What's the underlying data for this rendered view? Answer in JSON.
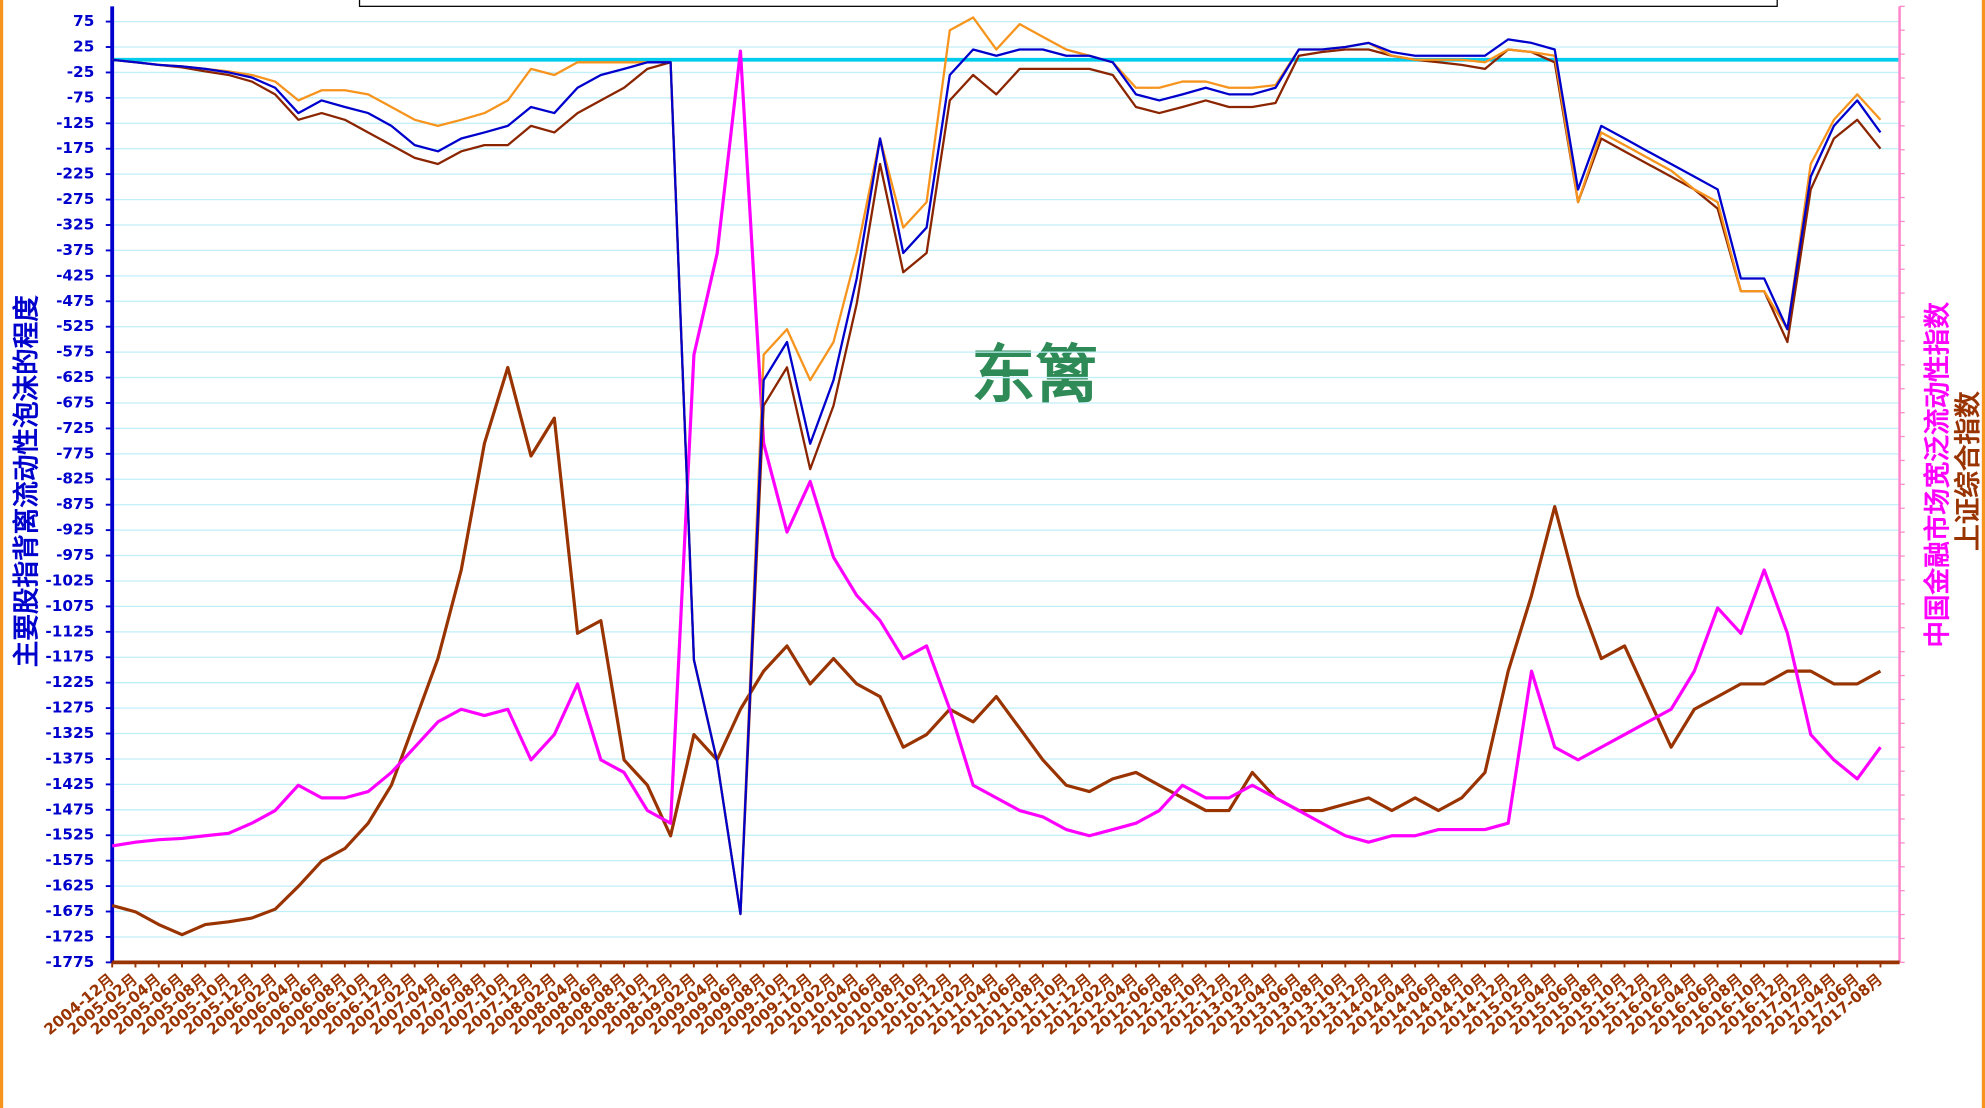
{
  "chart_data": {
    "type": "line",
    "y_label": "主要股指背离流动性泡沫的程度",
    "y2_labels": [
      "中国金融市场宽泛流动性指数",
      "上证综合指数"
    ],
    "watermark": "东篱",
    "categories": [
      "2004-12月",
      "2005-02月",
      "2005-04月",
      "2005-06月",
      "2005-08月",
      "2005-10月",
      "2005-12月",
      "2006-02月",
      "2006-04月",
      "2006-06月",
      "2006-08月",
      "2006-10月",
      "2006-12月",
      "2007-02月",
      "2007-04月",
      "2007-06月",
      "2007-08月",
      "2007-10月",
      "2007-12月",
      "2008-02月",
      "2008-04月",
      "2008-06月",
      "2008-08月",
      "2008-10月",
      "2008-12月",
      "2009-02月",
      "2009-04月",
      "2009-06月",
      "2009-08月",
      "2009-10月",
      "2009-12月",
      "2010-02月",
      "2010-04月",
      "2010-06月",
      "2010-08月",
      "2010-10月",
      "2010-12月",
      "2011-02月",
      "2011-04月",
      "2011-06月",
      "2011-08月",
      "2011-10月",
      "2011-12月",
      "2012-02月",
      "2012-04月",
      "2012-06月",
      "2012-08月",
      "2012-10月",
      "2012-12月",
      "2013-02月",
      "2013-04月",
      "2013-06月",
      "2013-08月",
      "2013-10月",
      "2013-12月",
      "2014-02月",
      "2014-04月",
      "2014-06月",
      "2014-08月",
      "2014-10月",
      "2014-12月",
      "2015-02月",
      "2015-04月",
      "2015-06月",
      "2015-08月",
      "2015-10月",
      "2015-12月",
      "2016-02月",
      "2016-04月",
      "2016-06月",
      "2016-08月",
      "2016-10月",
      "2016-12月",
      "2017-02月",
      "2017-04月",
      "2017-06月",
      "2017-08月"
    ],
    "ylim": [
      -1775,
      105
    ],
    "yticks": [
      75,
      25,
      -25,
      -75,
      -125,
      -175,
      -225,
      -275,
      -325,
      -375,
      -425,
      -475,
      -525,
      -575,
      -625,
      -675,
      -725,
      -775,
      -825,
      -875,
      -925,
      -975,
      -1025,
      -1075,
      -1125,
      -1175,
      -1225,
      -1275,
      -1325,
      -1375,
      -1425,
      -1475,
      -1525,
      -1575,
      -1625,
      -1675,
      -1725,
      -1775
    ],
    "y2lim": [
      784,
      8880
    ],
    "grid": true,
    "zero_line": {
      "value": 0,
      "color": "#00ccee"
    },
    "series": [
      {
        "color": "#0000cc",
        "axis": "y",
        "values": [
          0,
          -5,
          -10,
          -13,
          -18,
          -25,
          -35,
          -55,
          -105,
          -80,
          -93,
          -105,
          -130,
          -168,
          -180,
          -155,
          -143,
          -130,
          -93,
          -105,
          -55,
          -30,
          -18,
          -5,
          -5,
          -1180,
          -1380,
          -1680,
          -630,
          -555,
          -755,
          -630,
          -430,
          -155,
          -380,
          -330,
          -30,
          20,
          8,
          20,
          20,
          8,
          8,
          -5,
          -68,
          -80,
          -68,
          -55,
          -68,
          -68,
          -55,
          20,
          20,
          25,
          33,
          15,
          8,
          8,
          8,
          8,
          40,
          33,
          20,
          -255,
          -130,
          -155,
          -180,
          -205,
          -230,
          -255,
          -430,
          -430,
          -530,
          -230,
          -130,
          -80,
          -143
        ]
      },
      {
        "color": "#f7941d",
        "axis": "y",
        "values": [
          0,
          -5,
          -10,
          -13,
          -18,
          -23,
          -30,
          -43,
          -80,
          -60,
          -60,
          -68,
          -93,
          -118,
          -130,
          -118,
          -105,
          -80,
          -18,
          -30,
          -5,
          -5,
          -5,
          -5,
          -5,
          -1180,
          -1380,
          -1680,
          -580,
          -530,
          -630,
          -555,
          -380,
          -155,
          -330,
          -280,
          58,
          83,
          20,
          70,
          45,
          20,
          8,
          -5,
          -55,
          -55,
          -43,
          -43,
          -55,
          -55,
          -50,
          20,
          20,
          25,
          33,
          8,
          0,
          0,
          0,
          -5,
          20,
          15,
          8,
          -280,
          -143,
          -168,
          -193,
          -218,
          -255,
          -280,
          -455,
          -455,
          -530,
          -205,
          -118,
          -68,
          -118
        ]
      },
      {
        "color": "#8b2500",
        "axis": "y",
        "values": [
          0,
          -5,
          -10,
          -15,
          -23,
          -30,
          -43,
          -68,
          -118,
          -105,
          -118,
          -143,
          -168,
          -193,
          -205,
          -180,
          -168,
          -168,
          -130,
          -143,
          -105,
          -80,
          -55,
          -18,
          -5,
          -1180,
          -1380,
          -1680,
          -680,
          -605,
          -805,
          -680,
          -480,
          -205,
          -418,
          -380,
          -80,
          -30,
          -68,
          -18,
          -18,
          -18,
          -18,
          -30,
          -93,
          -105,
          -93,
          -80,
          -93,
          -93,
          -85,
          8,
          15,
          20,
          20,
          8,
          0,
          -5,
          -10,
          -18,
          20,
          15,
          -5,
          -280,
          -155,
          -180,
          -205,
          -230,
          -255,
          -293,
          -455,
          -455,
          -555,
          -255,
          -155,
          -118,
          -175
        ]
      },
      {
        "color": "#ff00ff",
        "axis": "y2",
        "values": [
          1770,
          1802,
          1823,
          1834,
          1856,
          1877,
          1963,
          2070,
          2284,
          2177,
          2177,
          2231,
          2392,
          2606,
          2820,
          2928,
          2874,
          2928,
          2499,
          2713,
          3142,
          2499,
          2392,
          2070,
          1963,
          5929,
          6787,
          8502,
          5179,
          4428,
          4857,
          4214,
          3892,
          3678,
          3356,
          3464,
          2928,
          2284,
          2177,
          2070,
          2016,
          1909,
          1856,
          1909,
          1963,
          2070,
          2284,
          2177,
          2177,
          2284,
          2177,
          2070,
          1963,
          1856,
          1802,
          1856,
          1856,
          1909,
          1909,
          1909,
          1963,
          3250,
          2606,
          2499,
          2606,
          2713,
          2820,
          2928,
          3250,
          3785,
          3571,
          4107,
          3571,
          2713,
          2499,
          2338,
          2606
        ]
      },
      {
        "color": "#993300",
        "axis": "y2",
        "values": [
          1266,
          1212,
          1105,
          1019,
          1105,
          1127,
          1159,
          1234,
          1427,
          1642,
          1748,
          1962,
          2284,
          2820,
          3356,
          4107,
          5179,
          5822,
          5072,
          5393,
          3571,
          3678,
          2499,
          2284,
          1855,
          2713,
          2499,
          2928,
          3250,
          3464,
          3142,
          3356,
          3142,
          3035,
          2606,
          2713,
          2928,
          2820,
          3035,
          2767,
          2499,
          2284,
          2231,
          2338,
          2392,
          2284,
          2177,
          2070,
          2070,
          2392,
          2177,
          2070,
          2070,
          2124,
          2177,
          2070,
          2177,
          2070,
          2177,
          2392,
          3250,
          3892,
          4643,
          3892,
          3356,
          3464,
          3035,
          2606,
          2928,
          3035,
          3142,
          3142,
          3250,
          3250,
          3142,
          3142,
          3250
        ]
      }
    ]
  }
}
